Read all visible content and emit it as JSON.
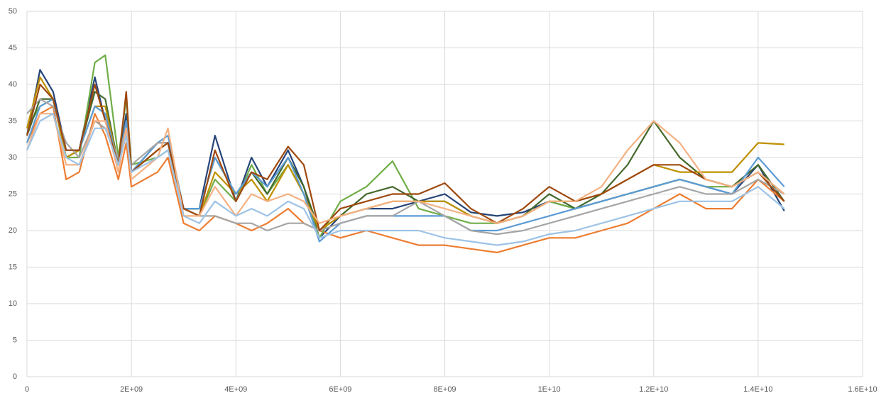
{
  "chart_data": {
    "type": "line",
    "x": [
      0,
      250000000,
      500000000,
      750000000,
      1000000000,
      1300000000,
      1500000000,
      1750000000,
      1900000000,
      2000000000,
      2500000000,
      2700000000,
      3000000000,
      3300000000,
      3600000000,
      4000000000,
      4300000000,
      4600000000,
      5000000000,
      5300000000,
      5600000000,
      6000000000,
      6500000000,
      7000000000,
      7500000000,
      8000000000,
      8500000000,
      9000000000,
      9500000000,
      10000000000,
      10500000000,
      11000000000,
      11500000000,
      12000000000,
      12500000000,
      13000000000,
      13500000000,
      14000000000,
      14500000000
    ],
    "series": [
      {
        "color": "#264478",
        "values": [
          33,
          42,
          39,
          31,
          31,
          41,
          35,
          29,
          36,
          28,
          32,
          32,
          23,
          23,
          33,
          24,
          30,
          26,
          31,
          26,
          19,
          22,
          23,
          23,
          24,
          25,
          22.5,
          22,
          22.5,
          24,
          23,
          24,
          25,
          26,
          27,
          26,
          25,
          29,
          22.7
        ]
      },
      {
        "color": "#ed7d31",
        "values": [
          32,
          36,
          37,
          27,
          28,
          36,
          33,
          27,
          32,
          26,
          28,
          30,
          21,
          20,
          22,
          21,
          20,
          21,
          23,
          21,
          20,
          19,
          20,
          19,
          18,
          18,
          17.5,
          17,
          18,
          19,
          19,
          20,
          21,
          23,
          25,
          23,
          23,
          27,
          24
        ]
      },
      {
        "color": "#70ad47",
        "values": [
          34,
          37,
          38,
          30,
          30,
          43,
          44,
          30,
          38,
          29,
          30,
          31,
          23,
          22,
          27,
          24,
          29,
          25,
          29,
          25,
          19,
          24,
          26,
          29.5,
          23,
          22,
          21,
          21,
          22,
          24,
          23,
          24,
          25,
          26,
          27,
          26,
          26,
          28,
          25
        ]
      },
      {
        "color": "#43682b",
        "values": [
          33,
          38,
          38,
          30,
          31,
          39,
          38,
          29,
          35,
          28,
          31,
          32,
          23,
          23,
          30,
          25,
          28,
          25,
          30,
          26,
          20,
          22,
          25,
          26,
          24,
          24,
          22,
          21,
          22,
          25,
          23,
          25,
          29,
          35,
          30,
          27,
          26,
          29,
          24
        ]
      },
      {
        "color": "#bf9000",
        "values": [
          34,
          41,
          38,
          30,
          31,
          37,
          37,
          29,
          35,
          28,
          31,
          32,
          23,
          22,
          28,
          25,
          27,
          24,
          29,
          25,
          20,
          22,
          23,
          24,
          24,
          24,
          22,
          21,
          22,
          24,
          24,
          25,
          27,
          29,
          28,
          28,
          28,
          32,
          31.8
        ]
      },
      {
        "color": "#5b9bd5",
        "values": [
          32,
          37,
          38,
          31,
          31,
          37,
          36,
          29,
          35,
          28,
          32,
          33,
          23,
          23,
          30,
          25,
          28,
          26,
          30,
          25,
          18.5,
          21,
          22,
          22,
          22,
          22,
          20,
          20,
          21,
          22,
          23,
          24,
          25,
          26,
          27,
          26,
          25,
          30,
          26
        ]
      },
      {
        "color": "#a5a5a5",
        "values": [
          36,
          38,
          37,
          32,
          30,
          35,
          34,
          30,
          34,
          29,
          32,
          32,
          23,
          22,
          22,
          21,
          21,
          20,
          21,
          21,
          20,
          21,
          22,
          22,
          24,
          22,
          20,
          19.5,
          20,
          21,
          22,
          23,
          24,
          25,
          26,
          25,
          25,
          27,
          25
        ]
      },
      {
        "color": "#9e480e",
        "values": [
          33,
          40,
          38,
          31,
          31,
          40,
          35,
          29,
          39,
          28,
          31,
          32,
          23,
          22,
          31,
          24,
          28,
          27,
          31.5,
          29,
          20,
          23,
          24,
          25,
          25,
          26.5,
          23,
          21,
          23,
          26,
          24,
          25,
          27,
          29,
          29,
          27,
          26,
          28,
          24
        ]
      },
      {
        "color": "#f4b183",
        "values": [
          31,
          36,
          36,
          29,
          29,
          35,
          35,
          28,
          34,
          27,
          30,
          34,
          22,
          22,
          26,
          22,
          25,
          24,
          25,
          24,
          21,
          22,
          23,
          24,
          24,
          23,
          22,
          21,
          22,
          24,
          24,
          26,
          31,
          35,
          32,
          27,
          26,
          28,
          25
        ]
      },
      {
        "color": "#9dc3e6",
        "values": [
          31,
          35,
          36,
          30,
          29,
          34,
          34,
          29,
          33,
          28,
          30,
          31,
          22,
          21,
          24,
          22,
          23,
          22,
          24,
          23,
          19,
          20,
          20,
          20,
          20,
          19,
          18.5,
          18,
          18.5,
          19.5,
          20,
          21,
          22,
          23,
          24,
          24,
          24,
          26,
          23
        ]
      }
    ],
    "xlim": [
      0,
      16000000000
    ],
    "xticks": [
      0,
      {
        "value": 2000000000,
        "label": "2E+09"
      },
      {
        "value": 4000000000,
        "label": "4E+09"
      },
      {
        "value": 6000000000,
        "label": "6E+09"
      },
      {
        "value": 8000000000,
        "label": "8E+09"
      },
      {
        "value": 10000000000,
        "label": "1E+10"
      },
      {
        "value": 12000000000,
        "label": "1.2E+10"
      },
      {
        "value": 14000000000,
        "label": "1.4E+10"
      },
      {
        "value": 16000000000,
        "label": "1.6E+10"
      }
    ],
    "ylim": [
      0,
      50
    ],
    "yticks": [
      0,
      5,
      10,
      15,
      20,
      25,
      30,
      35,
      40,
      45,
      50
    ],
    "grid": true
  }
}
